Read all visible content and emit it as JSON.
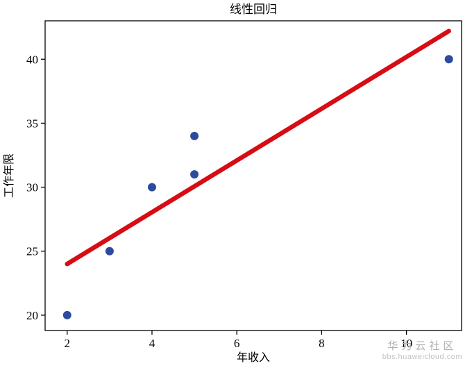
{
  "chart_data": {
    "type": "scatter",
    "title": "线性回归",
    "xlabel": "年收入",
    "ylabel": "工作年限",
    "xlim": [
      1.48,
      11.3
    ],
    "ylim": [
      18.8,
      43.0
    ],
    "xticks": [
      2,
      4,
      6,
      8,
      10
    ],
    "yticks": [
      20,
      25,
      30,
      35,
      40
    ],
    "grid": false,
    "legend": "none",
    "colors": {
      "scatter": "#2d4b9e",
      "line": "#d60d15",
      "spine": "#000000",
      "background": "#ffffff"
    },
    "series": [
      {
        "name": "data-points",
        "type": "scatter",
        "color": "#2d4b9e",
        "x": [
          2,
          3,
          4,
          5,
          5,
          11
        ],
        "y": [
          20,
          25,
          30,
          34,
          31,
          40
        ]
      },
      {
        "name": "regression-line",
        "type": "line",
        "color": "#d60d15",
        "x": [
          2,
          11
        ],
        "y": [
          24.0,
          42.2
        ]
      }
    ]
  },
  "watermark": {
    "line1": "华为云社区",
    "line2": "bbs.huaweicloud.com"
  }
}
